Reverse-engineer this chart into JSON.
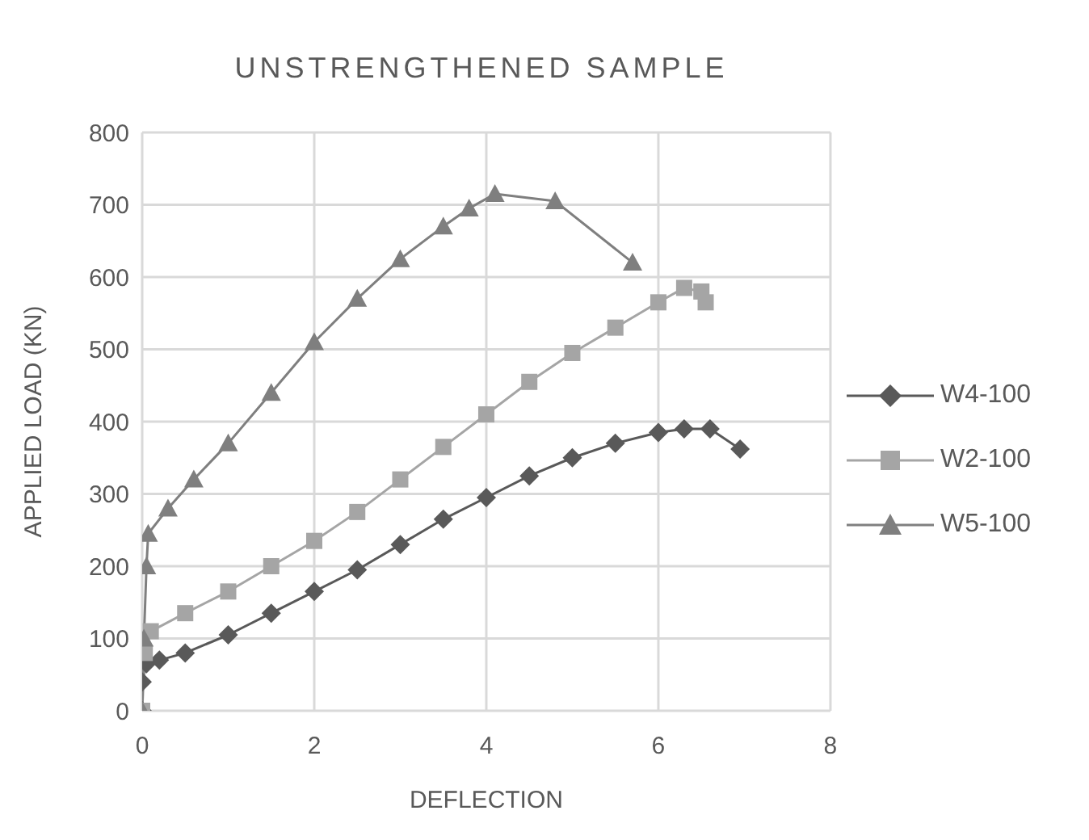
{
  "chart_data": {
    "type": "line",
    "title": "UNSTRENGTHENED SAMPLE",
    "xlabel": "DEFLECTION",
    "ylabel": "APPLIED LOAD (KN)",
    "xlim": [
      0,
      8
    ],
    "xticks": [
      0,
      2,
      4,
      6,
      8
    ],
    "ylim": [
      0,
      800
    ],
    "yticks": [
      0,
      100,
      200,
      300,
      400,
      500,
      600,
      700,
      800
    ],
    "grid": true,
    "legend": "right",
    "line_style": "solid",
    "series": [
      {
        "name": "W4-100",
        "color": "#595959",
        "marker": "diamond",
        "x": [
          0,
          0,
          0.05,
          0.2,
          0.5,
          1,
          1.5,
          2,
          2.5,
          3,
          3.5,
          4,
          4.5,
          5,
          5.5,
          6,
          6.3,
          6.6,
          6.95
        ],
        "values": [
          0,
          40,
          65,
          70,
          80,
          105,
          135,
          165,
          195,
          230,
          265,
          295,
          325,
          350,
          370,
          385,
          390,
          390,
          362
        ]
      },
      {
        "name": "W2-100",
        "color": "#a5a5a5",
        "marker": "square",
        "x": [
          0,
          0.03,
          0.1,
          0.5,
          1,
          1.5,
          2,
          2.5,
          3,
          3.5,
          4,
          4.5,
          5,
          5.5,
          6,
          6.3,
          6.5,
          6.55
        ],
        "values": [
          0,
          80,
          110,
          135,
          165,
          200,
          235,
          275,
          320,
          365,
          410,
          455,
          495,
          530,
          565,
          585,
          580,
          565
        ]
      },
      {
        "name": "W5-100",
        "color": "#7f7f7f",
        "marker": "triangle",
        "x": [
          0,
          0.02,
          0.05,
          0.07,
          0.3,
          0.6,
          1,
          1.5,
          2,
          2.5,
          3,
          3.5,
          3.8,
          4.1,
          4.8,
          5.7
        ],
        "values": [
          0,
          100,
          200,
          245,
          280,
          320,
          370,
          440,
          510,
          570,
          625,
          670,
          695,
          715,
          705,
          620
        ]
      }
    ]
  }
}
